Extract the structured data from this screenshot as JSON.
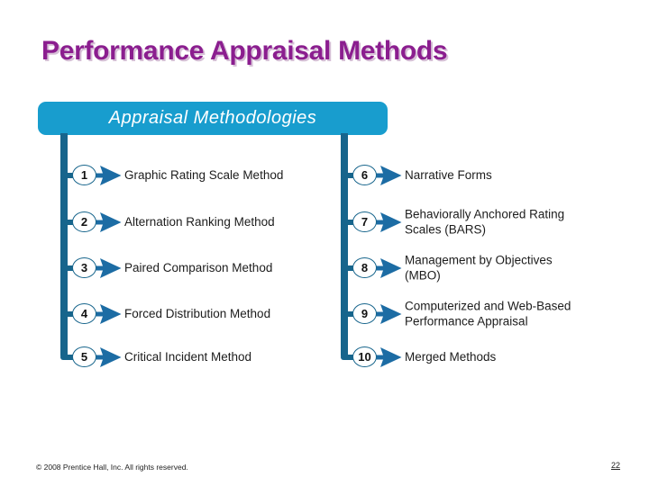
{
  "title": "Performance Appraisal Methods",
  "diagram": {
    "header": "Appraisal Methodologies",
    "columns": [
      {
        "side": "left",
        "items": [
          {
            "number": "1",
            "label": "Graphic Rating Scale Method"
          },
          {
            "number": "2",
            "label": "Alternation Ranking Method"
          },
          {
            "number": "3",
            "label": "Paired Comparison Method"
          },
          {
            "number": "4",
            "label": "Forced Distribution Method"
          },
          {
            "number": "5",
            "label": "Critical Incident Method"
          }
        ]
      },
      {
        "side": "right",
        "items": [
          {
            "number": "6",
            "label": "Narrative Forms"
          },
          {
            "number": "7",
            "label": "Behaviorally Anchored Rating\nScales (BARS)"
          },
          {
            "number": "8",
            "label": "Management by Objectives\n(MBO)"
          },
          {
            "number": "9",
            "label": "Computerized and Web-Based\nPerformance Appraisal"
          },
          {
            "number": "10",
            "label": "Merged Methods"
          }
        ]
      }
    ]
  },
  "footer": {
    "copyright": "© 2008 Prentice Hall, Inc. All rights reserved.",
    "page_number": "22"
  },
  "colors": {
    "title_purple": "#8B1E8F",
    "header_box_blue": "#189DCE",
    "connector_teal": "#17658C",
    "arrow_blue": "#1C6CA4",
    "text_dark": "#1C1C1C"
  }
}
